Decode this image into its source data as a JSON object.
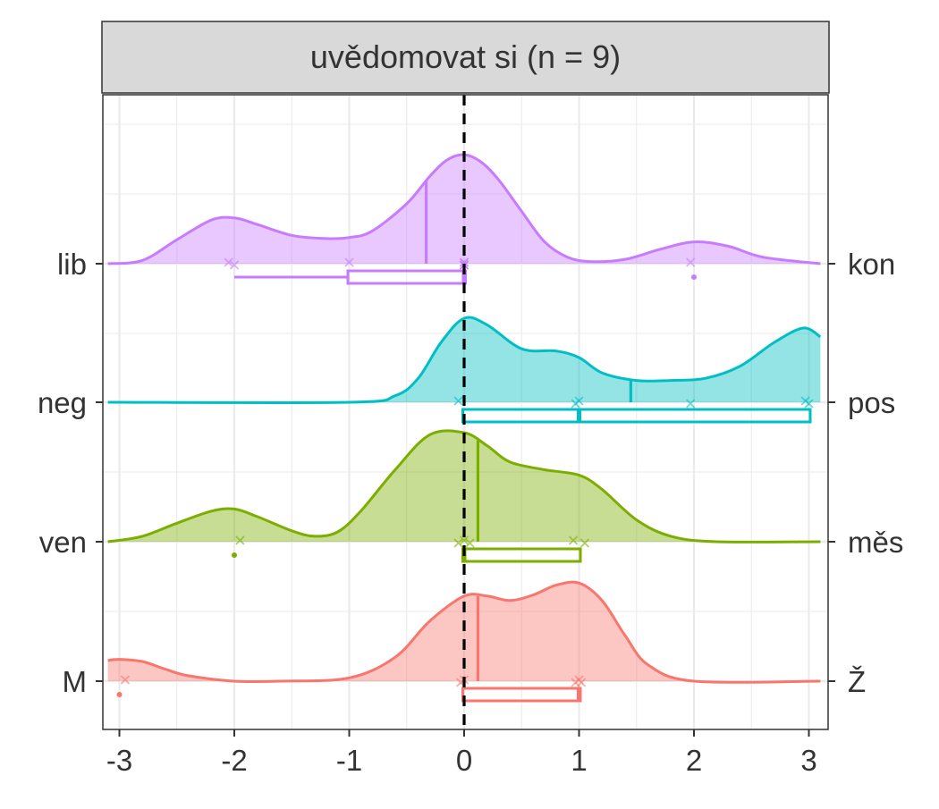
{
  "chart_data": {
    "type": "ridgeline-density",
    "title": "uvědomovat si (n = 9)",
    "xlim": [
      -3,
      3
    ],
    "x_ticks": [
      -3,
      -2,
      -1,
      0,
      1,
      2,
      3
    ],
    "x_tick_labels": [
      "-3",
      "-2",
      "-1",
      "0",
      "1",
      "2",
      "3"
    ],
    "reference_line_x": 0,
    "grid": true,
    "series": [
      {
        "left_label": "lib",
        "right_label": "kon",
        "color": "#c77cff",
        "x": [
          -3.1,
          -2.8,
          -2.5,
          -2.2,
          -2.0,
          -1.8,
          -1.5,
          -1.2,
          -1.0,
          -0.8,
          -0.5,
          -0.3,
          -0.15,
          0.0,
          0.15,
          0.3,
          0.5,
          0.7,
          0.9,
          1.1,
          1.4,
          1.7,
          2.0,
          2.3,
          2.6,
          3.1
        ],
        "density": [
          0.0,
          0.03,
          0.22,
          0.4,
          0.42,
          0.36,
          0.26,
          0.23,
          0.24,
          0.3,
          0.55,
          0.8,
          0.95,
          1.0,
          0.93,
          0.77,
          0.48,
          0.2,
          0.06,
          0.02,
          0.04,
          0.13,
          0.2,
          0.16,
          0.06,
          0.0
        ],
        "mean": -0.33,
        "points": [
          -2.05,
          -2.0,
          -1.0,
          0.0,
          0.0,
          0.0,
          0.0,
          0.0,
          1.97
        ],
        "box": {
          "whisker_low": -2,
          "q1": -1,
          "median": 0,
          "q3": 0,
          "whisker_high": 0
        },
        "outliers": [
          2
        ]
      },
      {
        "left_label": "neg",
        "right_label": "pos",
        "color": "#00bfc4",
        "x": [
          -3.1,
          -1.0,
          -0.6,
          -0.4,
          -0.2,
          0.0,
          0.2,
          0.5,
          0.8,
          1.0,
          1.2,
          1.5,
          1.8,
          2.1,
          2.4,
          2.7,
          2.95,
          3.1
        ],
        "density": [
          0.0,
          0.0,
          0.06,
          0.22,
          0.55,
          0.77,
          0.71,
          0.49,
          0.47,
          0.41,
          0.27,
          0.2,
          0.2,
          0.22,
          0.33,
          0.55,
          0.68,
          0.6
        ],
        "mean": 1.45,
        "points": [
          -0.05,
          0.97,
          1.0,
          1.97,
          2.97,
          3.0
        ],
        "box": {
          "whisker_low": 0,
          "q1": 0,
          "median": 1,
          "q3": 3,
          "whisker_high": 3
        },
        "outliers": []
      },
      {
        "left_label": "ven",
        "right_label": "měs",
        "color": "#7cae00",
        "x": [
          -3.1,
          -2.8,
          -2.5,
          -2.2,
          -2.0,
          -1.8,
          -1.5,
          -1.3,
          -1.1,
          -0.9,
          -0.6,
          -0.3,
          0.0,
          0.2,
          0.4,
          0.7,
          1.0,
          1.2,
          1.5,
          1.8,
          2.2,
          3.1
        ],
        "density": [
          0.0,
          0.05,
          0.17,
          0.28,
          0.3,
          0.23,
          0.1,
          0.05,
          0.09,
          0.28,
          0.66,
          0.98,
          1.0,
          0.88,
          0.73,
          0.66,
          0.61,
          0.48,
          0.2,
          0.05,
          0.0,
          0.0
        ],
        "mean": 0.12,
        "points": [
          -1.95,
          -0.05,
          0.0,
          0.05,
          0.95,
          1.05
        ],
        "box": {
          "whisker_low": 0,
          "q1": 0,
          "median": 0,
          "q3": 1,
          "whisker_high": 1
        },
        "outliers": [
          -2
        ]
      },
      {
        "left_label": "M",
        "right_label": "Ž",
        "color": "#f8766d",
        "x": [
          -3.1,
          -3.0,
          -2.8,
          -2.6,
          -2.4,
          -2.0,
          -1.6,
          -1.0,
          -0.6,
          -0.3,
          0.0,
          0.2,
          0.4,
          0.6,
          0.8,
          1.0,
          1.2,
          1.4,
          1.6,
          2.0,
          3.1
        ],
        "density": [
          0.19,
          0.2,
          0.18,
          0.11,
          0.05,
          0.0,
          0.0,
          0.03,
          0.22,
          0.55,
          0.78,
          0.78,
          0.74,
          0.79,
          0.88,
          0.9,
          0.74,
          0.42,
          0.15,
          0.0,
          0.0
        ],
        "mean": 0.12,
        "points": [
          -2.95,
          -0.03,
          0.0,
          0.97,
          1.0,
          1.02
        ],
        "box": {
          "whisker_low": 0,
          "q1": 0,
          "median": 1,
          "q3": 1,
          "whisker_high": 1
        },
        "outliers": [
          -3
        ]
      }
    ]
  }
}
